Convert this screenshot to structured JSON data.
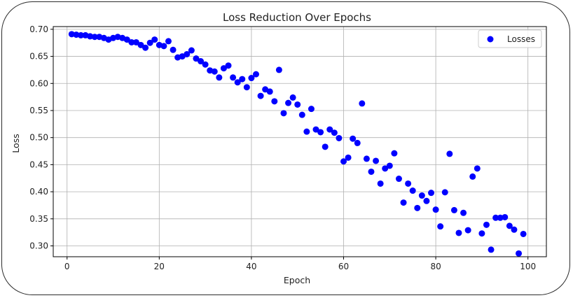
{
  "chart_data": {
    "type": "scatter",
    "title": "Loss Reduction Over Epochs",
    "xlabel": "Epoch",
    "ylabel": "Loss",
    "xlim": [
      -3,
      104
    ],
    "ylim": [
      0.28,
      0.705
    ],
    "xticks": [
      0,
      20,
      40,
      60,
      80,
      100
    ],
    "xtick_labels": [
      "0",
      "20",
      "40",
      "60",
      "80",
      "100"
    ],
    "yticks": [
      0.3,
      0.35,
      0.4,
      0.45,
      0.5,
      0.55,
      0.6,
      0.65,
      0.7
    ],
    "ytick_labels": [
      "0.30",
      "0.35",
      "0.40",
      "0.45",
      "0.50",
      "0.55",
      "0.60",
      "0.65",
      "0.70"
    ],
    "grid": true,
    "legend_position": "top-right",
    "series": [
      {
        "name": "Losses",
        "color": "#0000ff",
        "x": [
          1,
          2,
          3,
          4,
          5,
          6,
          7,
          8,
          9,
          10,
          11,
          12,
          13,
          14,
          15,
          16,
          17,
          18,
          19,
          20,
          21,
          22,
          23,
          24,
          25,
          26,
          27,
          28,
          29,
          30,
          31,
          32,
          33,
          34,
          35,
          36,
          37,
          38,
          39,
          40,
          41,
          42,
          43,
          44,
          45,
          46,
          47,
          48,
          49,
          50,
          51,
          52,
          53,
          54,
          55,
          56,
          57,
          58,
          59,
          60,
          61,
          62,
          63,
          64,
          65,
          66,
          67,
          68,
          69,
          70,
          71,
          72,
          73,
          74,
          75,
          76,
          77,
          78,
          79,
          80,
          81,
          82,
          83,
          84,
          85,
          86,
          87,
          88,
          89,
          90,
          91,
          92,
          93,
          94,
          95,
          96,
          97,
          98,
          99
        ],
        "y": [
          0.691,
          0.69,
          0.689,
          0.689,
          0.687,
          0.686,
          0.686,
          0.684,
          0.681,
          0.684,
          0.686,
          0.684,
          0.681,
          0.676,
          0.676,
          0.671,
          0.666,
          0.675,
          0.681,
          0.671,
          0.669,
          0.678,
          0.662,
          0.648,
          0.65,
          0.654,
          0.661,
          0.646,
          0.641,
          0.635,
          0.624,
          0.622,
          0.611,
          0.628,
          0.633,
          0.611,
          0.602,
          0.608,
          0.593,
          0.61,
          0.617,
          0.577,
          0.589,
          0.585,
          0.567,
          0.625,
          0.545,
          0.564,
          0.574,
          0.561,
          0.542,
          0.511,
          0.553,
          0.515,
          0.51,
          0.483,
          0.515,
          0.509,
          0.499,
          0.456,
          0.463,
          0.498,
          0.49,
          0.563,
          0.461,
          0.437,
          0.457,
          0.415,
          0.443,
          0.448,
          0.471,
          0.424,
          0.38,
          0.415,
          0.402,
          0.37,
          0.393,
          0.383,
          0.398,
          0.367,
          0.336,
          0.399,
          0.47,
          0.366,
          0.324,
          0.361,
          0.329,
          0.428,
          0.443,
          0.323,
          0.339,
          0.293,
          0.352,
          0.352,
          0.353,
          0.337,
          0.33,
          0.286,
          0.322
        ]
      }
    ]
  }
}
